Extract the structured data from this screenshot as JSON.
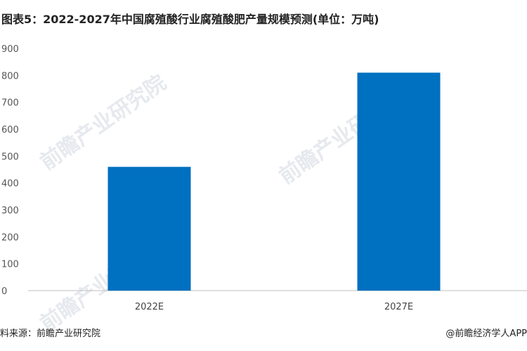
{
  "title": "图表5：2022-2027年中国腐殖酸行业腐殖酸肥产量规模预测(单位：万吨)",
  "source": "料来源：前瞻产业研究院",
  "credit": "@前瞻经济学人APP",
  "watermark": "前瞻产业研究院",
  "chart_data": {
    "type": "bar",
    "title": "图表5：2022-2027年中国腐殖酸行业腐殖酸肥产量规模预测(单位：万吨)",
    "categories": [
      "2022E",
      "2027E"
    ],
    "values": [
      460,
      810
    ],
    "ylim": [
      0,
      900
    ],
    "yticks": [
      0,
      100,
      200,
      300,
      400,
      500,
      600,
      700,
      800,
      900
    ],
    "grid": false,
    "bar_color": "#0070C0",
    "xlabel": "",
    "ylabel": ""
  }
}
